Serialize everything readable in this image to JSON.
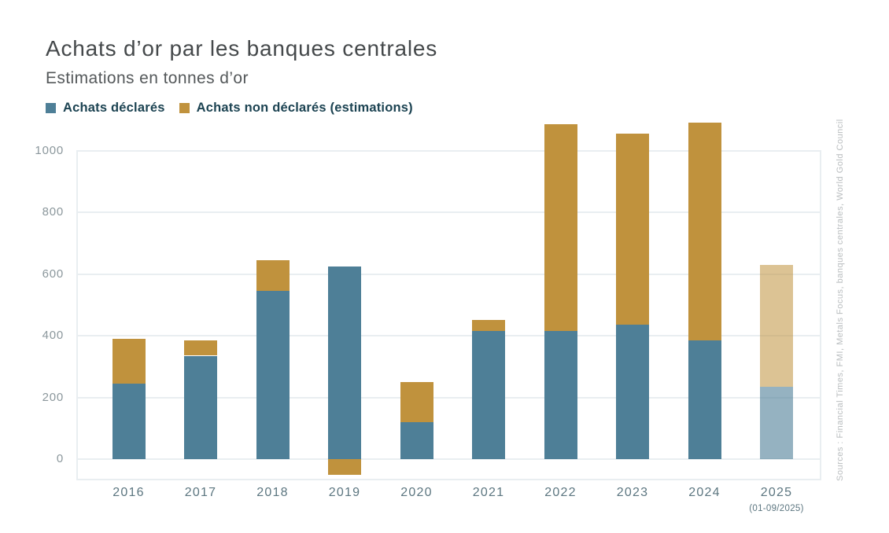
{
  "title": "Achats d’or par les banques centrales",
  "subtitle": "Estimations en tonnes d’or",
  "source_note": "Sources : Financial Times, FMI, Metals Focus, banques centrales, World Gold Council",
  "colors": {
    "declared": "#4e7f97",
    "undeclared": "#c0923d",
    "declared_faded": "rgba(78,127,151,0.6)",
    "undeclared_faded": "rgba(192,146,61,0.55)",
    "gridline": "#e9eef1",
    "y_label_text": "#8b979c",
    "x_label_text": "#5c7680",
    "legend_text": "#1c4352",
    "title_text": "#45494b",
    "source_text": "#b9bdbf"
  },
  "legend": [
    {
      "label": "Achats déclarés",
      "color_key": "declared"
    },
    {
      "label": "Achats non déclarés (estimations)",
      "color_key": "undeclared"
    }
  ],
  "chart_data": {
    "type": "bar",
    "stacked": true,
    "title": "Achats d’or par les banques centrales",
    "subtitle": "Estimations en tonnes d’or",
    "unit": "tonnes d’or",
    "xlabel": "",
    "ylabel": "",
    "grid": true,
    "legend_position": "top",
    "categories": [
      "2016",
      "2017",
      "2018",
      "2019",
      "2020",
      "2021",
      "2022",
      "2023",
      "2024",
      "2025"
    ],
    "category_sublabels": {
      "2025": "(01-09/2025)"
    },
    "faded_categories": [
      "2025"
    ],
    "series": [
      {
        "name": "Achats déclarés",
        "color_key": "declared",
        "faded_color_key": "declared_faded",
        "values": [
          245,
          335,
          545,
          625,
          120,
          415,
          415,
          435,
          385,
          235
        ]
      },
      {
        "name": "Achats non déclarés (estimations)",
        "color_key": "undeclared",
        "faded_color_key": "undeclared_faded",
        "values": [
          145,
          50,
          100,
          -50,
          130,
          35,
          670,
          620,
          705,
          395
        ]
      }
    ],
    "yticks": [
      0,
      200,
      400,
      600,
      800,
      1000
    ],
    "ylim": [
      -66,
      1100
    ]
  }
}
